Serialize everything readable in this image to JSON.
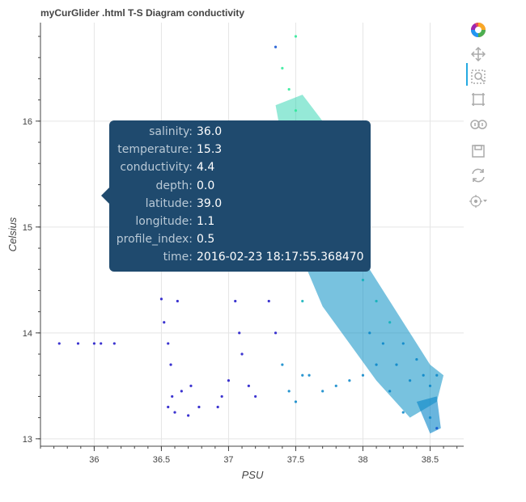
{
  "title": "myCurGlider .html T-S Diagram conductivity",
  "chart_data": {
    "type": "scatter",
    "title": "myCurGlider .html T-S Diagram conductivity",
    "xlabel": "PSU",
    "ylabel": "Celsius",
    "xlim": [
      35.6,
      38.75
    ],
    "ylim": [
      12.93,
      16.93
    ],
    "xticks": [
      "36",
      "36.5",
      "37",
      "37.5",
      "38",
      "38.5"
    ],
    "yticks": [
      "13",
      "14",
      "15",
      "16"
    ],
    "grid": true,
    "color_field": "conductivity",
    "colormap": [
      "#1a10c8",
      "#0a4fd0",
      "#0584c8",
      "#0ab0b8",
      "#14cfa6",
      "#28ea96"
    ],
    "points": [
      {
        "x": 35.74,
        "y": 13.9
      },
      {
        "x": 35.88,
        "y": 13.9
      },
      {
        "x": 36.0,
        "y": 13.9
      },
      {
        "x": 36.05,
        "y": 13.9
      },
      {
        "x": 36.15,
        "y": 13.9
      },
      {
        "x": 36.55,
        "y": 13.3
      },
      {
        "x": 36.6,
        "y": 13.25
      },
      {
        "x": 36.7,
        "y": 13.22
      },
      {
        "x": 36.78,
        "y": 13.3
      },
      {
        "x": 36.58,
        "y": 13.4
      },
      {
        "x": 36.65,
        "y": 13.45
      },
      {
        "x": 36.72,
        "y": 13.5
      },
      {
        "x": 36.5,
        "y": 14.32
      },
      {
        "x": 36.52,
        "y": 14.1
      },
      {
        "x": 36.55,
        "y": 13.9
      },
      {
        "x": 36.57,
        "y": 13.7
      },
      {
        "x": 36.62,
        "y": 14.3
      },
      {
        "x": 36.92,
        "y": 13.3
      },
      {
        "x": 36.95,
        "y": 13.4
      },
      {
        "x": 37.0,
        "y": 13.55
      },
      {
        "x": 37.05,
        "y": 14.3
      },
      {
        "x": 37.08,
        "y": 14.0
      },
      {
        "x": 37.1,
        "y": 13.8
      },
      {
        "x": 37.15,
        "y": 13.5
      },
      {
        "x": 37.2,
        "y": 13.4
      },
      {
        "x": 37.3,
        "y": 14.3
      },
      {
        "x": 37.35,
        "y": 14.0
      },
      {
        "x": 37.4,
        "y": 13.7
      },
      {
        "x": 37.45,
        "y": 13.45
      },
      {
        "x": 37.5,
        "y": 13.35
      },
      {
        "x": 37.55,
        "y": 13.6
      },
      {
        "x": 37.6,
        "y": 13.6
      },
      {
        "x": 37.7,
        "y": 13.45
      },
      {
        "x": 37.8,
        "y": 13.5
      },
      {
        "x": 37.9,
        "y": 13.55
      },
      {
        "x": 38.0,
        "y": 13.6
      },
      {
        "x": 38.1,
        "y": 13.7
      },
      {
        "x": 38.2,
        "y": 13.45
      },
      {
        "x": 38.3,
        "y": 13.25
      },
      {
        "x": 38.35,
        "y": 13.55
      },
      {
        "x": 38.4,
        "y": 13.75
      },
      {
        "x": 38.45,
        "y": 13.6
      },
      {
        "x": 38.5,
        "y": 13.5
      },
      {
        "x": 38.55,
        "y": 13.6
      },
      {
        "x": 38.5,
        "y": 13.2
      },
      {
        "x": 38.55,
        "y": 13.1
      },
      {
        "x": 38.3,
        "y": 13.9
      },
      {
        "x": 38.2,
        "y": 14.1
      },
      {
        "x": 38.1,
        "y": 14.3
      },
      {
        "x": 38.0,
        "y": 14.5
      },
      {
        "x": 37.95,
        "y": 14.7
      },
      {
        "x": 37.85,
        "y": 14.9
      },
      {
        "x": 37.8,
        "y": 15.0
      },
      {
        "x": 37.7,
        "y": 15.2
      },
      {
        "x": 37.65,
        "y": 15.4
      },
      {
        "x": 37.6,
        "y": 15.6
      },
      {
        "x": 37.55,
        "y": 15.85
      },
      {
        "x": 37.5,
        "y": 16.1
      },
      {
        "x": 37.45,
        "y": 16.3
      },
      {
        "x": 37.4,
        "y": 16.5
      },
      {
        "x": 37.35,
        "y": 16.7
      },
      {
        "x": 37.5,
        "y": 16.8
      },
      {
        "x": 37.45,
        "y": 15.3
      },
      {
        "x": 37.5,
        "y": 14.6
      },
      {
        "x": 37.55,
        "y": 14.3
      },
      {
        "x": 37.4,
        "y": 14.8
      },
      {
        "x": 38.15,
        "y": 13.9
      },
      {
        "x": 38.25,
        "y": 13.7
      },
      {
        "x": 38.05,
        "y": 14.0
      }
    ]
  },
  "tooltip": {
    "rows": [
      {
        "label": "salinity:",
        "value": "36.0"
      },
      {
        "label": "temperature:",
        "value": "15.3"
      },
      {
        "label": "conductivity:",
        "value": "4.4"
      },
      {
        "label": "depth:",
        "value": "0.0"
      },
      {
        "label": "latitude:",
        "value": "39.0"
      },
      {
        "label": "longitude:",
        "value": "1.1"
      },
      {
        "label": "profile_index:",
        "value": "0.5"
      },
      {
        "label": "time:",
        "value": "2016-02-23 18:17:55.368470"
      }
    ]
  },
  "toolbar": {
    "tools": [
      "bokeh-logo",
      "pan",
      "box-zoom",
      "box-select",
      "wheel-zoom",
      "save",
      "reset",
      "hover"
    ],
    "accent": "#26aae1",
    "icon_color": "#aaaaaa"
  }
}
